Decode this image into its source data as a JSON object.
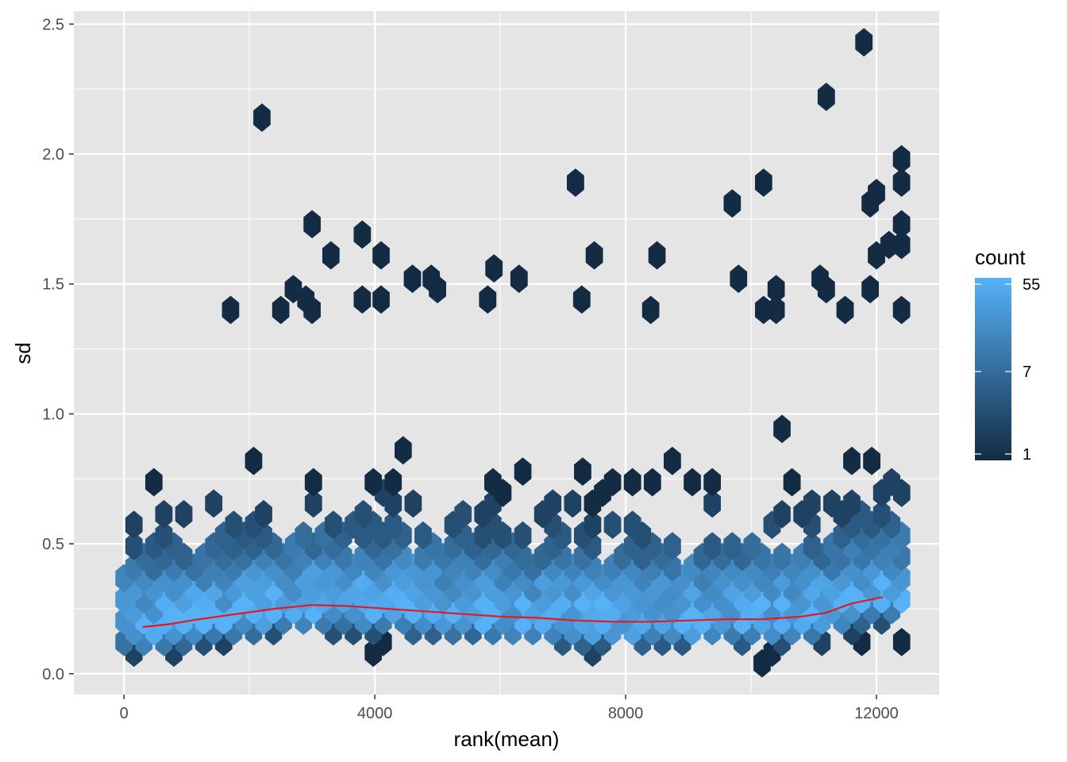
{
  "chart_data": {
    "type": "hexbin",
    "title": "",
    "xlabel": "rank(mean)",
    "ylabel": "sd",
    "xlim": [
      -800,
      13000
    ],
    "ylim": [
      -0.08,
      2.55
    ],
    "x_ticks": [
      0,
      4000,
      8000,
      12000
    ],
    "x_tick_labels": [
      "0",
      "4000",
      "8000",
      "12000"
    ],
    "y_ticks": [
      0.0,
      0.5,
      1.0,
      1.5,
      2.0,
      2.5
    ],
    "y_tick_labels": [
      "0.0",
      "0.5",
      "1.0",
      "1.5",
      "2.0",
      "2.5"
    ],
    "grid": true,
    "panel_background": "#e5e5e5",
    "legend": {
      "title": "count",
      "position": "right",
      "breaks": [
        1,
        7,
        55
      ],
      "labels": [
        "1",
        "7",
        "55"
      ],
      "color_low": "#132b43",
      "color_high": "#56b1f7"
    },
    "trend_line": {
      "color": "#e41a1c",
      "x": [
        300,
        700,
        1200,
        1800,
        2400,
        3000,
        3600,
        4200,
        4800,
        5400,
        6000,
        6600,
        7200,
        7800,
        8400,
        9000,
        9600,
        10200,
        10800,
        11200,
        11600,
        12100
      ],
      "y": [
        0.18,
        0.19,
        0.21,
        0.23,
        0.25,
        0.265,
        0.26,
        0.25,
        0.24,
        0.23,
        0.22,
        0.215,
        0.205,
        0.2,
        0.2,
        0.205,
        0.21,
        0.21,
        0.22,
        0.235,
        0.27,
        0.295
      ]
    },
    "outlier_bins": [
      {
        "x": 2200,
        "y": 2.14
      },
      {
        "x": 11800,
        "y": 2.43
      },
      {
        "x": 11200,
        "y": 2.22
      },
      {
        "x": 12400,
        "y": 1.98
      },
      {
        "x": 12400,
        "y": 1.89
      },
      {
        "x": 7200,
        "y": 1.89
      },
      {
        "x": 10200,
        "y": 1.89
      },
      {
        "x": 12000,
        "y": 1.85
      },
      {
        "x": 11900,
        "y": 1.81
      },
      {
        "x": 9700,
        "y": 1.81
      },
      {
        "x": 3000,
        "y": 1.73
      },
      {
        "x": 12400,
        "y": 1.73
      },
      {
        "x": 3800,
        "y": 1.69
      },
      {
        "x": 12200,
        "y": 1.65
      },
      {
        "x": 12400,
        "y": 1.65
      },
      {
        "x": 3300,
        "y": 1.61
      },
      {
        "x": 4100,
        "y": 1.61
      },
      {
        "x": 7500,
        "y": 1.61
      },
      {
        "x": 8500,
        "y": 1.61
      },
      {
        "x": 12000,
        "y": 1.61
      },
      {
        "x": 5900,
        "y": 1.56
      },
      {
        "x": 4600,
        "y": 1.52
      },
      {
        "x": 4900,
        "y": 1.52
      },
      {
        "x": 6300,
        "y": 1.52
      },
      {
        "x": 9800,
        "y": 1.52
      },
      {
        "x": 11100,
        "y": 1.52
      },
      {
        "x": 5000,
        "y": 1.48
      },
      {
        "x": 2700,
        "y": 1.48
      },
      {
        "x": 10400,
        "y": 1.48
      },
      {
        "x": 11200,
        "y": 1.48
      },
      {
        "x": 11900,
        "y": 1.48
      },
      {
        "x": 5800,
        "y": 1.44
      },
      {
        "x": 7300,
        "y": 1.44
      },
      {
        "x": 3800,
        "y": 1.44
      },
      {
        "x": 4100,
        "y": 1.44
      },
      {
        "x": 2900,
        "y": 1.44
      },
      {
        "x": 12400,
        "y": 1.4
      },
      {
        "x": 8400,
        "y": 1.4
      },
      {
        "x": 11500,
        "y": 1.4
      },
      {
        "x": 1700,
        "y": 1.4
      },
      {
        "x": 2500,
        "y": 1.4
      },
      {
        "x": 3000,
        "y": 1.4
      },
      {
        "x": 10200,
        "y": 1.4
      },
      {
        "x": 10400,
        "y": 1.4
      }
    ]
  }
}
